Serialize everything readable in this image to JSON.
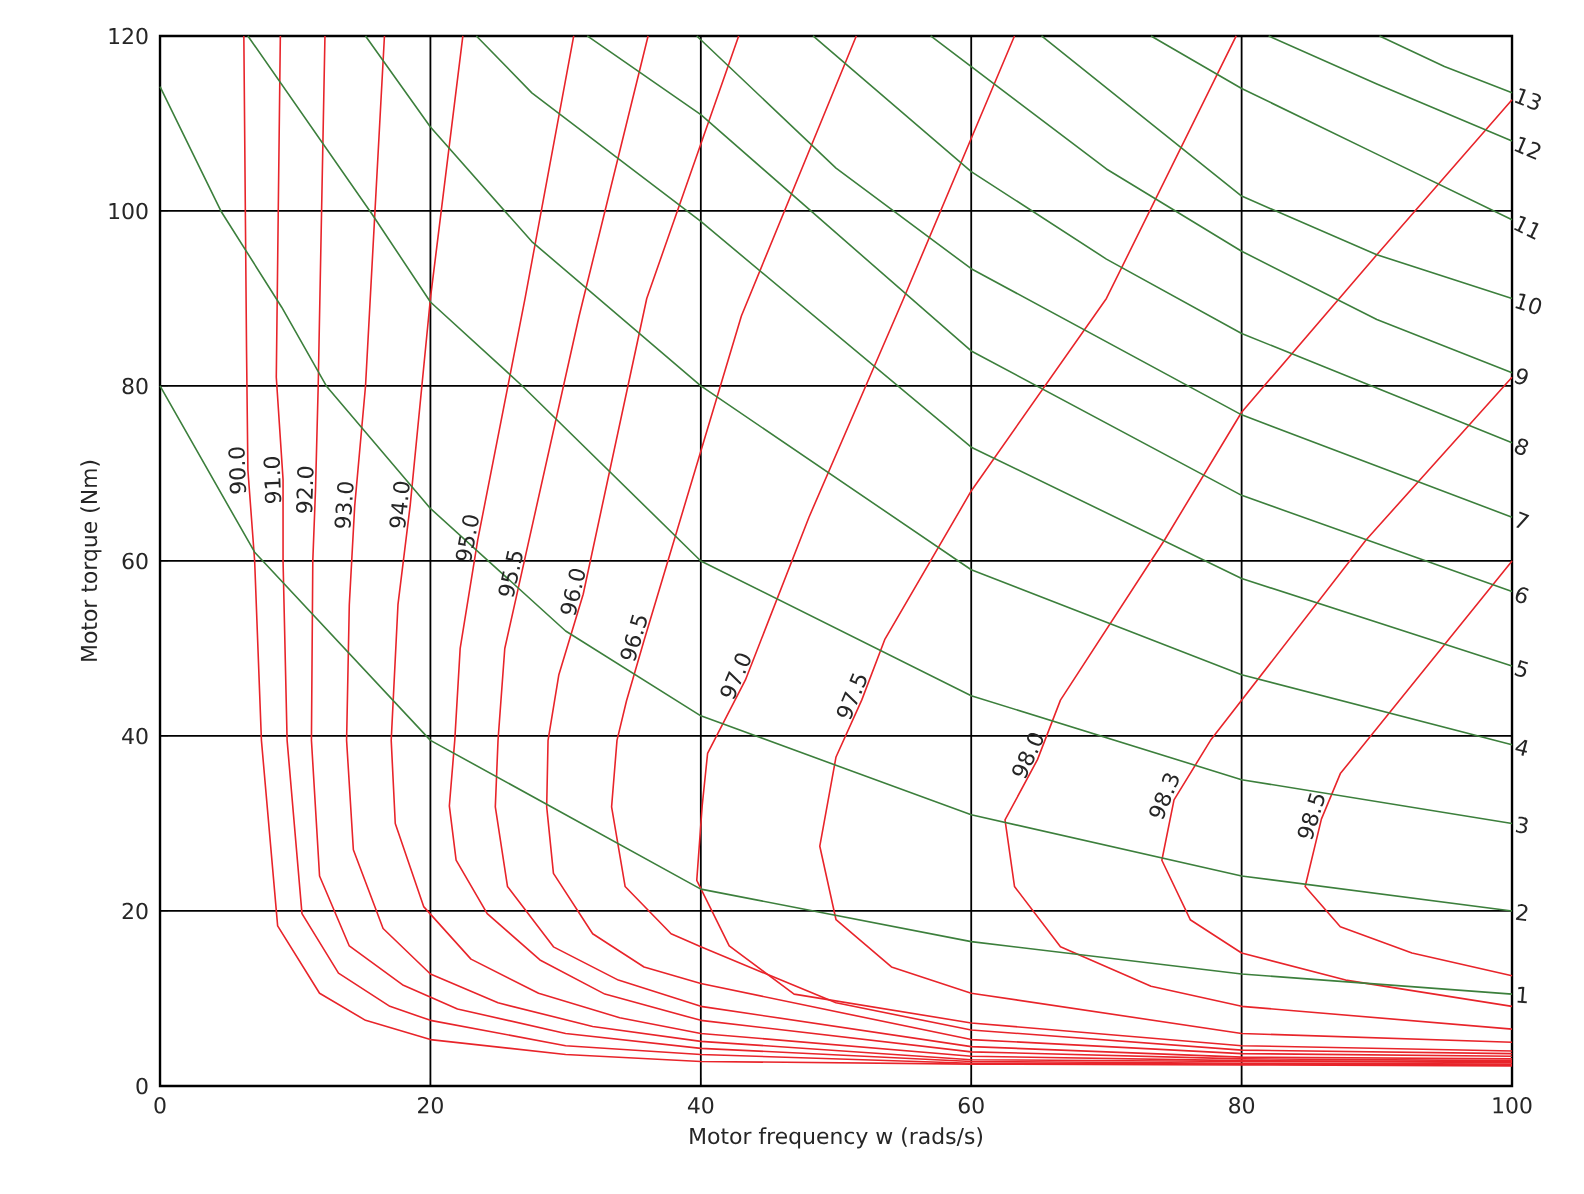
{
  "chart_data": {
    "type": "line",
    "xlabel": "Motor frequency w (rads/s)",
    "ylabel": "Motor torque (Nm)",
    "xlim": [
      0,
      100
    ],
    "xticks": [
      0,
      20,
      40,
      60,
      80,
      100
    ],
    "ylim": [
      0,
      120
    ],
    "yticks": [
      0,
      20,
      40,
      60,
      80,
      100,
      120
    ],
    "grid": true,
    "marker": "none",
    "line_style": "solid",
    "series": [
      {
        "name": "90.0",
        "color": "#e8242a",
        "x": [
          6.2,
          6.4,
          6.5,
          7.0,
          7.5,
          8.7,
          11.8,
          15.2,
          20,
          30,
          40,
          60,
          80,
          100
        ],
        "values": [
          120,
          84,
          70.4,
          60,
          39.5,
          18.3,
          10.6,
          7.5,
          5.3,
          3.6,
          2.8,
          2.5,
          2.4,
          2.3
        ]
      },
      {
        "name": "91.0",
        "color": "#e8242a",
        "x": [
          8.9,
          8.6,
          9.1,
          9.1,
          9.4,
          10.5,
          13.2,
          17,
          20,
          30,
          40,
          60,
          80,
          100
        ],
        "values": [
          120,
          81,
          69.3,
          60,
          39.5,
          19.7,
          12.9,
          9.1,
          7.5,
          4.6,
          3.6,
          2.6,
          2.5,
          2.4
        ]
      },
      {
        "name": "92.0",
        "color": "#e8242a",
        "x": [
          12.2,
          11.7,
          11.5,
          11.3,
          11.2,
          11.8,
          14,
          18,
          22,
          30,
          40,
          60,
          80,
          100
        ],
        "values": [
          120,
          80,
          68.1,
          60,
          39.5,
          24,
          16,
          11.5,
          8.8,
          6,
          4.3,
          2.8,
          2.6,
          2.5
        ]
      },
      {
        "name": "93.0",
        "color": "#e8242a",
        "x": [
          16.6,
          15.2,
          14.4,
          14.0,
          13.8,
          14.3,
          16.5,
          20,
          25,
          32,
          40,
          60,
          80,
          100
        ],
        "values": [
          120,
          80,
          66.3,
          55,
          39.5,
          27,
          18,
          12.8,
          9.5,
          6.8,
          5.1,
          3.0,
          2.8,
          2.7
        ]
      },
      {
        "name": "94.0",
        "color": "#e8242a",
        "x": [
          22.4,
          20,
          18.5,
          17.6,
          17.1,
          17.4,
          19.5,
          23,
          28,
          34,
          40,
          60,
          80,
          100
        ],
        "values": [
          120,
          90,
          66.3,
          55,
          39.5,
          30,
          20.5,
          14.5,
          10.6,
          7.8,
          6.0,
          3.4,
          2.9,
          2.8
        ]
      },
      {
        "name": "95.0",
        "color": "#e8242a",
        "x": [
          30.6,
          27,
          23.5,
          22.2,
          21.8,
          21.4,
          21.9,
          24.2,
          28.1,
          32.9,
          40,
          60,
          80,
          100
        ],
        "values": [
          120,
          90,
          62.4,
          50,
          39.5,
          32,
          25.8,
          19.7,
          14.4,
          10.5,
          7.5,
          3.9,
          3.1,
          2.9
        ]
      },
      {
        "name": "95.5",
        "color": "#e8242a",
        "x": [
          36.1,
          31,
          26.7,
          25.5,
          25.0,
          24.8,
          25.7,
          29.1,
          33.9,
          40,
          60,
          80,
          100
        ],
        "values": [
          120,
          88,
          58.3,
          50,
          39.5,
          31.9,
          22.8,
          15.9,
          12.1,
          9.1,
          4.5,
          3.3,
          3.1
        ]
      },
      {
        "name": "96.0",
        "color": "#e8242a",
        "x": [
          42.8,
          36,
          31.3,
          29.5,
          28.7,
          28.6,
          29.1,
          32,
          35.8,
          40,
          60,
          80,
          100
        ],
        "values": [
          120,
          90,
          56.2,
          47,
          39.5,
          31.9,
          24.3,
          17.4,
          13.6,
          11.7,
          5.3,
          3.7,
          3.4
        ]
      },
      {
        "name": "96.5",
        "color": "#e8242a",
        "x": [
          51.5,
          43,
          35.8,
          34.5,
          33.8,
          33.4,
          34.4,
          37.8,
          40,
          50,
          60,
          80,
          100
        ],
        "values": [
          120,
          88,
          50.9,
          44,
          39.5,
          31.9,
          22.8,
          17.4,
          15.9,
          9.5,
          6.4,
          4.1,
          3.7
        ]
      },
      {
        "name": "97.0",
        "color": "#e8242a",
        "x": [
          63.2,
          55,
          48,
          43.3,
          40.5,
          40.1,
          39.7,
          42.1,
          46.9,
          60,
          80,
          100
        ],
        "values": [
          120,
          90,
          65,
          46.4,
          38,
          32,
          23.5,
          16,
          10.5,
          7.2,
          4.6,
          4.0
        ]
      },
      {
        "name": "97.5",
        "color": "#e8242a",
        "x": [
          79.6,
          70,
          60,
          53.6,
          51.9,
          50,
          48.8,
          50,
          54.1,
          60,
          80,
          100
        ],
        "values": [
          120,
          90,
          68,
          51,
          44.1,
          37.6,
          27.4,
          19,
          13.6,
          10.6,
          6,
          5.0
        ]
      },
      {
        "name": "98.0",
        "color": "#e8242a",
        "x": [
          100,
          90,
          80,
          74.3,
          66.6,
          64.9,
          62.5,
          63.2,
          66.6,
          73.3,
          80,
          100
        ],
        "values": [
          112.7,
          95,
          77,
          62.4,
          44.1,
          37.3,
          30.4,
          22.8,
          15.9,
          11.4,
          9.1,
          6.5
        ]
      },
      {
        "name": "98.3",
        "color": "#e8242a",
        "x": [
          100,
          89.2,
          77.7,
          75,
          74.1,
          76.2,
          80,
          87.7,
          100
        ],
        "values": [
          81,
          62.4,
          39.5,
          32.7,
          25.8,
          19,
          15.2,
          12.1,
          9.1
        ]
      },
      {
        "name": "98.5",
        "color": "#e8242a",
        "x": [
          100,
          87.3,
          85.9,
          84.7,
          87.3,
          92.6,
          100
        ],
        "values": [
          60,
          35.7,
          30.5,
          22.8,
          18.2,
          15.2,
          12.6
        ]
      },
      {
        "name": "1",
        "color": "#3c7f3c",
        "x": [
          0,
          7,
          20,
          40,
          60,
          80,
          100
        ],
        "values": [
          80,
          61,
          39.5,
          22.5,
          16.5,
          12.8,
          10.5
        ]
      },
      {
        "name": "2",
        "color": "#3c7f3c",
        "x": [
          0,
          4.5,
          9,
          12.3,
          20,
          30,
          40,
          60,
          80,
          100
        ],
        "values": [
          114.2,
          100,
          89,
          80,
          66,
          52,
          42.3,
          31,
          24,
          20
        ]
      },
      {
        "name": "3",
        "color": "#3c7f3c",
        "x": [
          6.5,
          15.7,
          20,
          26.8,
          40,
          60,
          80,
          100
        ],
        "values": [
          120,
          99.6,
          89.6,
          80,
          60,
          44.6,
          35,
          30
        ]
      },
      {
        "name": "4",
        "color": "#3c7f3c",
        "x": [
          15.2,
          20,
          27.5,
          40,
          60,
          80,
          100
        ],
        "values": [
          120,
          109.6,
          96.5,
          80,
          59,
          47,
          39
        ]
      },
      {
        "name": "5",
        "color": "#3c7f3c",
        "x": [
          23.4,
          27.5,
          40,
          60,
          80,
          100
        ],
        "values": [
          120,
          113.5,
          98.8,
          73,
          58,
          48
        ]
      },
      {
        "name": "6",
        "color": "#3c7f3c",
        "x": [
          31.6,
          40,
          60,
          80,
          100
        ],
        "values": [
          120,
          111,
          84,
          67.5,
          56.5
        ]
      },
      {
        "name": "7",
        "color": "#3c7f3c",
        "x": [
          39.7,
          50,
          60,
          80,
          100
        ],
        "values": [
          120,
          104.9,
          93.4,
          76.7,
          65
        ]
      },
      {
        "name": "8",
        "color": "#3c7f3c",
        "x": [
          48.3,
          60,
          70,
          80,
          100
        ],
        "values": [
          120,
          104.5,
          94.5,
          86,
          73.5
        ]
      },
      {
        "name": "9",
        "color": "#3c7f3c",
        "x": [
          57,
          70,
          80,
          90,
          100
        ],
        "values": [
          120,
          104.8,
          95.4,
          87.6,
          81.5
        ]
      },
      {
        "name": "10",
        "color": "#3c7f3c",
        "x": [
          65.2,
          80,
          90,
          100
        ],
        "values": [
          120,
          101.7,
          95,
          90
        ]
      },
      {
        "name": "11",
        "color": "#3c7f3c",
        "x": [
          73.3,
          80,
          90,
          100
        ],
        "values": [
          120,
          114,
          106.5,
          99
        ]
      },
      {
        "name": "12",
        "color": "#3c7f3c",
        "x": [
          82,
          90,
          100
        ],
        "values": [
          120,
          114.5,
          108
        ]
      },
      {
        "name": "13",
        "color": "#3c7f3c",
        "x": [
          90.2,
          95,
          100
        ],
        "values": [
          120,
          116.5,
          113.5
        ]
      }
    ]
  }
}
